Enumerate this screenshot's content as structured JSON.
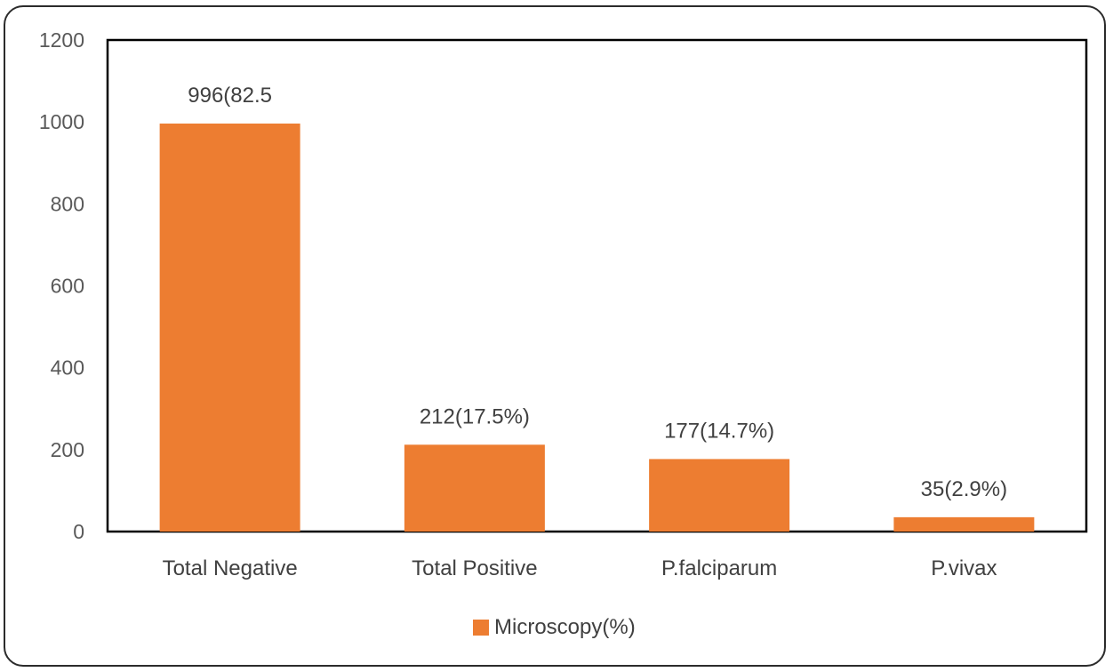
{
  "chart_data": {
    "type": "bar",
    "categories": [
      "Total Negative",
      "Total Positive",
      "P.falciparum",
      "P.vivax"
    ],
    "series": [
      {
        "name": "Microscopy(%)",
        "values": [
          996,
          212,
          177,
          35
        ],
        "data_labels": [
          "996(82.5",
          "212(17.5%)",
          "177(14.7%)",
          "35(2.9%)"
        ],
        "color": "#ED7D31"
      }
    ],
    "ylim": [
      0,
      1200
    ],
    "yticks": [
      "0",
      "200",
      "400",
      "600",
      "800",
      "1000",
      "1200"
    ],
    "grid": false,
    "legend_position": "bottom"
  }
}
